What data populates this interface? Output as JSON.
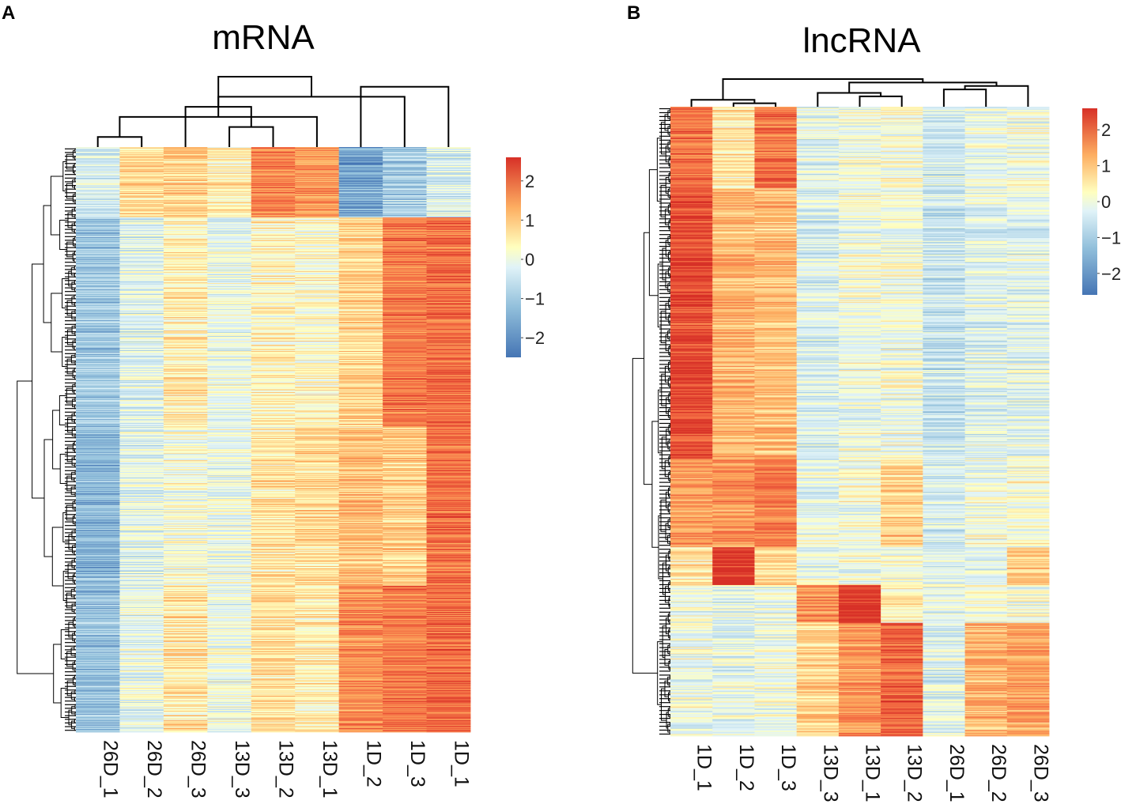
{
  "colors": {
    "low": "#4575b4",
    "mid_low": "#e0f3f8",
    "mid": "#ffffbf",
    "mid_high": "#fdae61",
    "high": "#d73027"
  },
  "chart_data": [
    {
      "type": "heatmap",
      "panel": "A",
      "title": "mRNA",
      "columns": [
        "26D_1",
        "26D_2",
        "26D_3",
        "13D_3",
        "13D_2",
        "13D_1",
        "1D_2",
        "1D_3",
        "1D_1"
      ],
      "legend": {
        "ticks": [
          2,
          1,
          0,
          -1,
          -2
        ],
        "tick_labels": [
          "2",
          "1",
          "0",
          "−1",
          "−2"
        ],
        "range": [
          -2.5,
          2.6
        ]
      },
      "row_count": 740,
      "blocks": [
        {
          "fraction": 0.12,
          "values": [
            -0.6,
            0.4,
            0.6,
            0.2,
            1.5,
            1.3,
            -1.8,
            -1.2,
            -0.6
          ]
        },
        {
          "fraction": 0.36,
          "values": [
            -1.3,
            -0.5,
            0.2,
            -0.4,
            0.1,
            0.0,
            0.5,
            1.6,
            1.8
          ]
        },
        {
          "fraction": 0.27,
          "values": [
            -1.6,
            -0.5,
            -0.2,
            -0.3,
            0.3,
            0.4,
            0.8,
            0.6,
            1.7
          ]
        },
        {
          "fraction": 0.25,
          "values": [
            -1.4,
            -0.4,
            0.3,
            -0.3,
            0.4,
            0.2,
            1.4,
            1.6,
            1.8
          ]
        }
      ],
      "column_dendrogram": [
        [
          0,
          1
        ],
        [
          3,
          4
        ],
        [
          9,
          5
        ],
        [
          2,
          10
        ],
        [
          11,
          7
        ],
        [
          6,
          8
        ],
        [
          12,
          13
        ]
      ]
    },
    {
      "type": "heatmap",
      "panel": "B",
      "title": "lncRNA",
      "columns": [
        "1D_1",
        "1D_2",
        "1D_3",
        "13D_3",
        "13D_1",
        "13D_2",
        "26D_1",
        "26D_2",
        "26D_3"
      ],
      "legend": {
        "ticks": [
          2,
          1,
          0,
          -1,
          -2
        ],
        "tick_labels": [
          "2",
          "1",
          "0",
          "−1",
          "−2"
        ],
        "range": [
          -2.6,
          2.6
        ]
      },
      "row_count": 600,
      "blocks": [
        {
          "fraction": 0.13,
          "values": [
            1.7,
            0.2,
            1.7,
            -0.5,
            -0.3,
            -0.2,
            -0.7,
            -0.4,
            -0.3
          ]
        },
        {
          "fraction": 0.43,
          "values": [
            2.2,
            0.9,
            0.8,
            -0.6,
            -0.3,
            -0.3,
            -0.8,
            -0.5,
            -0.5
          ]
        },
        {
          "fraction": 0.14,
          "values": [
            1.2,
            1.3,
            1.6,
            -0.4,
            -0.2,
            0.6,
            -0.6,
            -0.3,
            -0.2
          ]
        },
        {
          "fraction": 0.06,
          "values": [
            0.3,
            2.5,
            0.4,
            -0.4,
            -0.3,
            -0.2,
            -0.5,
            -0.4,
            0.7
          ]
        },
        {
          "fraction": 0.06,
          "values": [
            -0.3,
            -0.5,
            -0.4,
            1.4,
            2.4,
            0.2,
            -0.4,
            -0.3,
            -0.2
          ]
        },
        {
          "fraction": 0.18,
          "values": [
            -0.3,
            -0.5,
            -0.3,
            0.5,
            1.3,
            1.9,
            -0.5,
            0.9,
            1.2
          ]
        }
      ],
      "column_dendrogram": [
        [
          1,
          2
        ],
        [
          0,
          9
        ],
        [
          4,
          5
        ],
        [
          3,
          11
        ],
        [
          6,
          7
        ],
        [
          13,
          8
        ],
        [
          12,
          14
        ],
        [
          10,
          15
        ]
      ]
    }
  ]
}
